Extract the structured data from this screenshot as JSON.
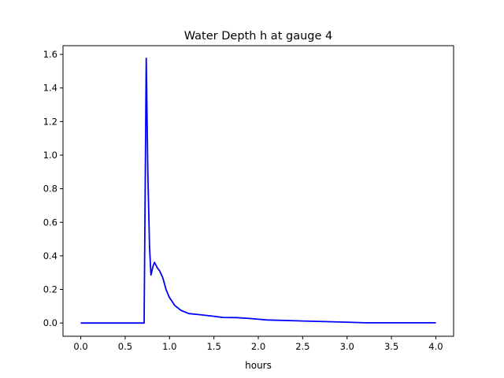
{
  "chart_data": {
    "type": "line",
    "title": "Water Depth h at gauge 4",
    "xlabel": "hours",
    "ylabel": "",
    "xlim": [
      -0.2,
      4.2
    ],
    "ylim": [
      -0.079,
      1.652
    ],
    "xticks": [
      0.0,
      0.5,
      1.0,
      1.5,
      2.0,
      2.5,
      3.0,
      3.5,
      4.0
    ],
    "xtick_labels": [
      "0.0",
      "0.5",
      "1.0",
      "1.5",
      "2.0",
      "2.5",
      "3.0",
      "3.5",
      "4.0"
    ],
    "yticks": [
      0.0,
      0.2,
      0.4,
      0.6,
      0.8,
      1.0,
      1.2,
      1.4,
      1.6
    ],
    "ytick_labels": [
      "0.0",
      "0.2",
      "0.4",
      "0.6",
      "0.8",
      "1.0",
      "1.2",
      "1.4",
      "1.6"
    ],
    "grid": false,
    "series": [
      {
        "name": "h",
        "color": "#0000ff",
        "x": [
          0.0,
          0.5,
          0.714,
          0.738,
          0.755,
          0.775,
          0.791,
          0.815,
          0.831,
          0.862,
          0.889,
          0.924,
          0.96,
          0.996,
          1.058,
          1.13,
          1.218,
          1.3,
          1.5,
          1.6,
          1.75,
          1.9,
          2.1,
          2.5,
          3.0,
          3.2,
          3.5,
          4.0
        ],
        "y": [
          0.0,
          0.0,
          0.0,
          1.577,
          0.9,
          0.45,
          0.286,
          0.34,
          0.361,
          0.329,
          0.31,
          0.27,
          0.2,
          0.155,
          0.105,
          0.075,
          0.056,
          0.052,
          0.04,
          0.033,
          0.032,
          0.027,
          0.018,
          0.012,
          0.005,
          0.001,
          0.001,
          0.001
        ]
      }
    ]
  }
}
